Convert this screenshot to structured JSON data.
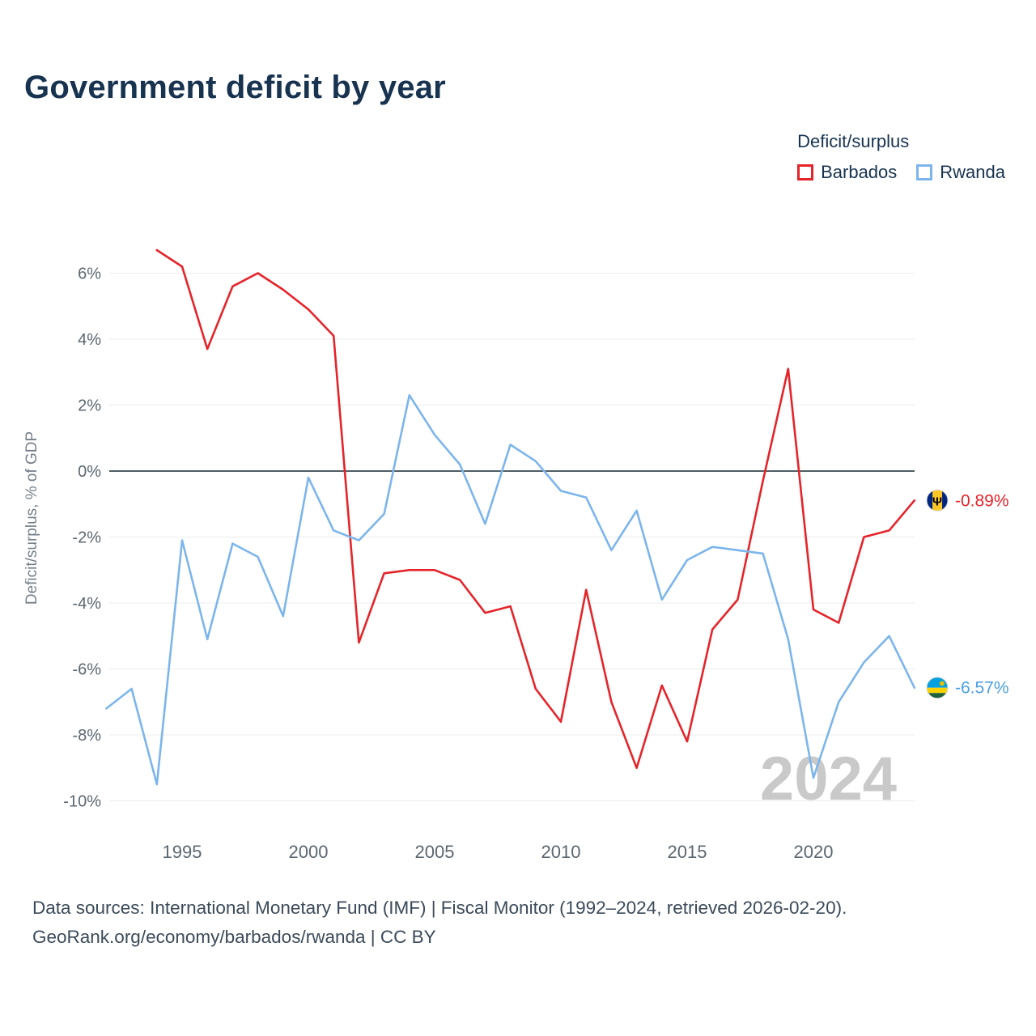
{
  "title": "Government deficit by year",
  "legend": {
    "title": "Deficit/surplus",
    "items": [
      {
        "label": "Barbados",
        "color": "#e5242a"
      },
      {
        "label": "Rwanda",
        "color": "#7cb5ec"
      }
    ]
  },
  "watermark": "2024",
  "end_labels": [
    {
      "series": "Barbados",
      "value": "-0.89%",
      "flag": "barbados-flag",
      "text_color": "#e5242a"
    },
    {
      "series": "Rwanda",
      "value": "-6.57%",
      "flag": "rwanda-flag",
      "text_color": "#4a9fe1"
    }
  ],
  "footer": {
    "line1": "Data sources: International Monetary Fund (IMF) | Fiscal Monitor (1992–2024, retrieved 2026-02-20).",
    "line2": "GeoRank.org/economy/barbados/rwanda | CC BY"
  },
  "chart_data": {
    "type": "line",
    "title": "Government deficit by year",
    "xlabel": "",
    "ylabel": "Deficit/surplus, % of GDP",
    "x": [
      1992,
      1993,
      1994,
      1995,
      1996,
      1997,
      1998,
      1999,
      2000,
      2001,
      2002,
      2003,
      2004,
      2005,
      2006,
      2007,
      2008,
      2009,
      2010,
      2011,
      2012,
      2013,
      2014,
      2015,
      2016,
      2017,
      2018,
      2019,
      2020,
      2021,
      2022,
      2023,
      2024
    ],
    "series": [
      {
        "name": "Barbados",
        "color": "#e5242a",
        "values": [
          null,
          null,
          6.7,
          6.2,
          3.7,
          5.6,
          6.0,
          5.5,
          4.9,
          4.1,
          -5.2,
          -3.1,
          -3.0,
          -3.0,
          -3.3,
          -4.3,
          -4.1,
          -6.6,
          -7.6,
          -3.6,
          -7.0,
          -9.0,
          -6.5,
          -8.2,
          -4.8,
          -3.9,
          -0.3,
          3.1,
          -4.2,
          -4.6,
          -2.0,
          -1.8,
          -0.89
        ]
      },
      {
        "name": "Rwanda",
        "color": "#7cb5ec",
        "values": [
          -7.2,
          -6.6,
          -9.5,
          -2.1,
          -5.1,
          -2.2,
          -2.6,
          -4.4,
          -0.2,
          -1.8,
          -2.1,
          -1.3,
          2.3,
          1.1,
          0.2,
          -1.6,
          0.8,
          0.3,
          -0.6,
          -0.8,
          -2.4,
          -1.2,
          -3.9,
          -2.7,
          -2.3,
          -2.4,
          -2.5,
          -5.1,
          -9.3,
          -7.0,
          -5.8,
          -5.0,
          -6.57
        ]
      }
    ],
    "ylim": [
      -10.5,
      7.2
    ],
    "yticks": [
      6,
      4,
      2,
      0,
      -2,
      -4,
      -6,
      -8,
      -10
    ],
    "xticks": [
      1995,
      2000,
      2005,
      2010,
      2015,
      2020
    ],
    "grid": true,
    "zero_line": true,
    "legend_position": "top-right",
    "grid_color": "#ececec",
    "zero_line_color": "#37474f",
    "tick_color": "#5b6770",
    "watermark_color": "#c9c9c9"
  }
}
